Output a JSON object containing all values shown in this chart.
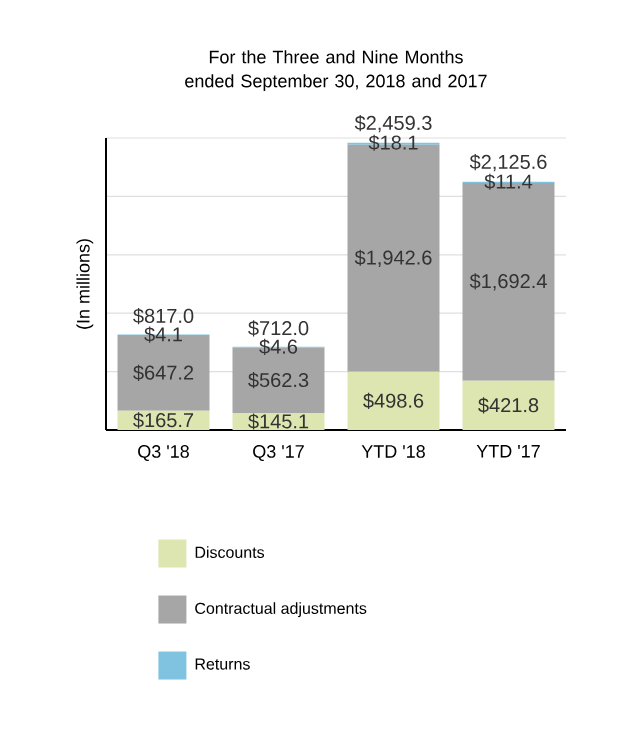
{
  "chart_data": {
    "type": "bar",
    "stacked": true,
    "title": "For the Three and Nine Months ended September 30, 2018 and 2017",
    "ylabel": "(In millions)",
    "categories": [
      "Q3 '18",
      "Q3 '17",
      "YTD '18",
      "YTD '17"
    ],
    "series": [
      {
        "name": "Discounts",
        "color": "#dde5b0",
        "values": [
          165.7,
          145.1,
          498.6,
          421.8
        ],
        "value_labels": [
          "$165.7",
          "$145.1",
          "$498.6",
          "$421.8"
        ]
      },
      {
        "name": "Contractual adjustments",
        "color": "#a6a6a6",
        "values": [
          647.2,
          562.3,
          1942.6,
          1692.4
        ],
        "value_labels": [
          "$647.2",
          "$562.3",
          "$1,942.6",
          "$1,692.4"
        ]
      },
      {
        "name": "Returns",
        "color": "#7fc3e0",
        "values": [
          4.1,
          4.6,
          18.1,
          11.4
        ],
        "value_labels": [
          "$4.1",
          "$4.6",
          "$18.1",
          "$11.4"
        ]
      }
    ],
    "totals": [
      "$817.0",
      "$712.0",
      "$2,459.3",
      "$2,125.6"
    ],
    "ylim": [
      0,
      2500
    ],
    "yticks": [
      {
        "value": 0,
        "label": null
      },
      {
        "value": 500,
        "label": null
      },
      {
        "value": 1000,
        "label": null
      },
      {
        "value": 1500,
        "label": null
      },
      {
        "value": 2000,
        "label": null
      },
      {
        "value": 2500,
        "label": null
      }
    ],
    "grid": "y",
    "tick_labels": "x",
    "legend": "bottom"
  }
}
